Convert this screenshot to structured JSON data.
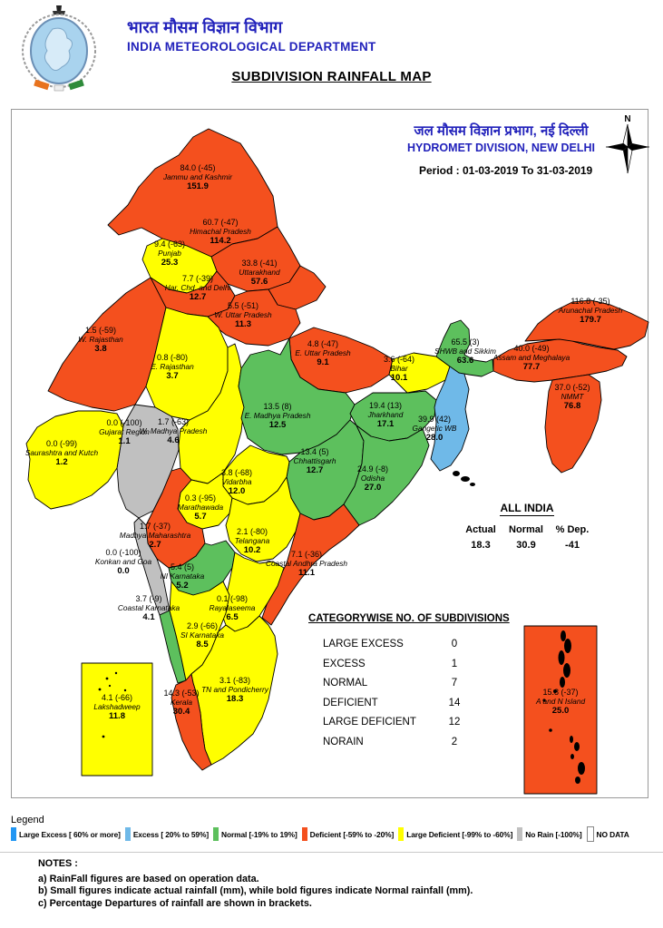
{
  "header": {
    "hindi_title": "भारत मौसम विज्ञान विभाग",
    "org_name": "INDIA METEOROLOGICAL DEPARTMENT"
  },
  "page_title": "SUBDIVISION RAINFALL MAP",
  "map_panel": {
    "hindi_division": "जल मौसम विज्ञान प्रभाग, नई दिल्ली",
    "division": "HYDROMET DIVISION, NEW DELHI",
    "period": "Period : 01-03-2019 To 31-03-2019",
    "compass_label": "N"
  },
  "all_india": {
    "title": "ALL INDIA",
    "columns": [
      "Actual",
      "Normal",
      "% Dep."
    ],
    "values": [
      "18.3",
      "30.9",
      "-41"
    ]
  },
  "category_table": {
    "title": "CATEGORYWISE NO. OF SUBDIVISIONS",
    "rows": [
      {
        "label": "LARGE EXCESS",
        "value": "0"
      },
      {
        "label": "EXCESS",
        "value": "1"
      },
      {
        "label": "NORMAL",
        "value": "7"
      },
      {
        "label": "DEFICIENT",
        "value": "14"
      },
      {
        "label": "LARGE DEFICIENT",
        "value": "12"
      },
      {
        "label": "NORAIN",
        "value": "2"
      }
    ]
  },
  "legend": {
    "title": "Legend",
    "items": [
      {
        "label": "Large Excess [ 60% or more]",
        "category": "large_excess"
      },
      {
        "label": "Excess [ 20% to 59%]",
        "category": "excess"
      },
      {
        "label": "Normal [-19% to 19%]",
        "category": "normal"
      },
      {
        "label": "Deficient [-59% to -20%]",
        "category": "deficient"
      },
      {
        "label": "Large Deficient [-99% to -60%]",
        "category": "large_deficient"
      },
      {
        "label": "No Rain [-100%]",
        "category": "no_rain"
      },
      {
        "label": "NO DATA",
        "category": "no_data"
      }
    ]
  },
  "palette": {
    "large_excess": "#2196F3",
    "excess": "#6FB9E8",
    "normal": "#5DC05D",
    "deficient": "#F4501E",
    "large_deficient": "#FFFF00",
    "no_rain": "#C0C0C0",
    "no_data": "#FFFFFF",
    "header_blue": "#2222BB"
  },
  "notes": {
    "title": "NOTES :",
    "items": [
      "a) RainFall figures are based on operation data.",
      "b) Small figures indicate actual rainfall (mm), while bold figures indicate Normal rainfall (mm).",
      "c) Percentage Departures of rainfall are shown in brackets."
    ]
  },
  "regions": [
    {
      "id": "jammu_kashmir",
      "line1": "84.0 (-45)",
      "name": "Jammu and Kashmir",
      "normal": "151.9",
      "category": "deficient"
    },
    {
      "id": "himachal",
      "line1": "60.7 (-47)",
      "name": "Himachal Pradesh",
      "normal": "114.2",
      "category": "deficient"
    },
    {
      "id": "punjab",
      "line1": "9.4 (-63)",
      "name": "Punjab",
      "normal": "25.3",
      "category": "large_deficient"
    },
    {
      "id": "har_chd_delhi",
      "line1": "7.7 (-39)",
      "name": "Har. Chd. and Delhi",
      "normal": "12.7",
      "category": "deficient"
    },
    {
      "id": "uttarakhand",
      "line1": "33.8 (-41)",
      "name": "Uttarakhand",
      "normal": "57.6",
      "category": "deficient"
    },
    {
      "id": "w_up",
      "line1": "5.5 (-51)",
      "name": "W. Uttar Pradesh",
      "normal": "11.3",
      "category": "deficient"
    },
    {
      "id": "e_up",
      "line1": "4.8 (-47)",
      "name": "E. Uttar Pradesh",
      "normal": "9.1",
      "category": "deficient"
    },
    {
      "id": "bihar",
      "line1": "3.6 (-64)",
      "name": "Bihar",
      "normal": "10.1",
      "category": "large_deficient"
    },
    {
      "id": "w_rajasthan",
      "line1": "1.5 (-59)",
      "name": "W. Rajasthan",
      "normal": "3.8",
      "category": "deficient"
    },
    {
      "id": "e_rajasthan",
      "line1": "0.8 (-80)",
      "name": "E. Rajasthan",
      "normal": "3.7",
      "category": "large_deficient"
    },
    {
      "id": "gujarat",
      "line1": "0.0 (-100)",
      "name": "Gujarat Region",
      "normal": "1.1",
      "category": "no_rain"
    },
    {
      "id": "saurashtra_kutch",
      "line1": "0.0 (-99)",
      "name": "Saurashtra and Kutch",
      "normal": "1.2",
      "category": "large_deficient"
    },
    {
      "id": "w_mp",
      "line1": "1.7 (-63)",
      "name": "W. Madhya Pradesh",
      "normal": "4.6",
      "category": "large_deficient"
    },
    {
      "id": "e_mp",
      "line1": "13.5 (8)",
      "name": "E. Madhya Pradesh",
      "normal": "12.5",
      "category": "normal"
    },
    {
      "id": "jharkhand",
      "line1": "19.4 (13)",
      "name": "Jharkhand",
      "normal": "17.1",
      "category": "normal"
    },
    {
      "id": "gangetic_wb",
      "line1": "39.9 (42)",
      "name": "Gangetic WB",
      "normal": "28.0",
      "category": "excess"
    },
    {
      "id": "chhattisgarh",
      "line1": "13.4 (5)",
      "name": "Chhattisgarh",
      "normal": "12.7",
      "category": "normal"
    },
    {
      "id": "odisha",
      "line1": "24.9 (-8)",
      "name": "Odisha",
      "normal": "27.0",
      "category": "normal"
    },
    {
      "id": "vidarbha",
      "line1": "3.8 (-68)",
      "name": "Vidarbha",
      "normal": "12.0",
      "category": "large_deficient"
    },
    {
      "id": "marathawada",
      "line1": "0.3 (-95)",
      "name": "Marathawada",
      "normal": "5.7",
      "category": "large_deficient"
    },
    {
      "id": "madhya_maharashtra",
      "line1": "1.7 (-37)",
      "name": "Madhya Maharashtra",
      "normal": "2.7",
      "category": "deficient"
    },
    {
      "id": "konkan_goa",
      "line1": "0.0 (-100)",
      "name": "Konkan and Goa",
      "normal": "0.0",
      "category": "no_rain"
    },
    {
      "id": "telangana",
      "line1": "2.1 (-80)",
      "name": "Telangana",
      "normal": "10.2",
      "category": "large_deficient"
    },
    {
      "id": "coastal_ap",
      "line1": "7.1 (-36)",
      "name": "Coastal Andhra Pradesh",
      "normal": "11.1",
      "category": "deficient"
    },
    {
      "id": "ni_karnataka",
      "line1": "5.4 (5)",
      "name": "NI Karnataka",
      "normal": "5.2",
      "category": "normal"
    },
    {
      "id": "coastal_karnataka",
      "line1": "3.7 (-9)",
      "name": "Coastal Karnataka",
      "normal": "4.1",
      "category": "normal"
    },
    {
      "id": "rayalaseema",
      "line1": "0.1 (-98)",
      "name": "Rayalaseema",
      "normal": "6.5",
      "category": "large_deficient"
    },
    {
      "id": "si_karnataka",
      "line1": "2.9 (-66)",
      "name": "SI Karnataka",
      "normal": "8.5",
      "category": "large_deficient"
    },
    {
      "id": "tn_pondicherry",
      "line1": "3.1 (-83)",
      "name": "TN and Pondicherry",
      "normal": "18.3",
      "category": "large_deficient"
    },
    {
      "id": "kerala",
      "line1": "14.3 (-53)",
      "name": "Kerala",
      "normal": "30.4",
      "category": "deficient"
    },
    {
      "id": "lakshadweep",
      "line1": "4.1 (-66)",
      "name": "Lakshadweep",
      "normal": "11.8",
      "category": "large_deficient"
    },
    {
      "id": "a_n_island",
      "line1": "15.8 (-37)",
      "name": "A and N Island",
      "normal": "25.0",
      "category": "deficient"
    },
    {
      "id": "shwb_sikkim",
      "line1": "65.5 (3)",
      "name": "SHWB and Sikkim",
      "normal": "63.6",
      "category": "normal"
    },
    {
      "id": "arunachal",
      "line1": "116.8 (-35)",
      "name": "Arunachal Pradesh",
      "normal": "179.7",
      "category": "deficient"
    },
    {
      "id": "assam_meghalaya",
      "line1": "40.0 (-49)",
      "name": "Assam and Meghalaya",
      "normal": "77.7",
      "category": "deficient"
    },
    {
      "id": "nmmt",
      "line1": "37.0 (-52)",
      "name": "NMMT",
      "normal": "76.8",
      "category": "deficient"
    }
  ]
}
